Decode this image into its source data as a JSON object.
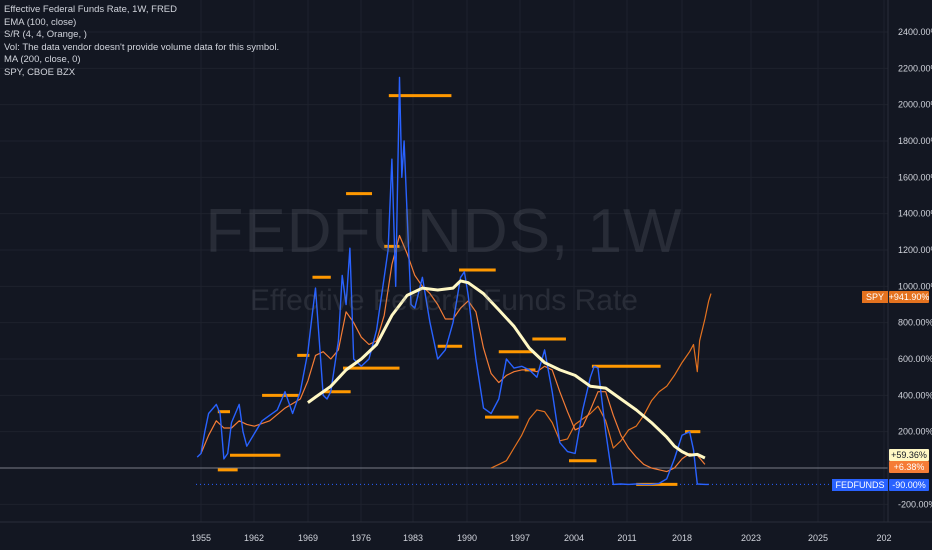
{
  "legend": {
    "title": "Effective Federal Funds Rate, 1W, FRED",
    "ema": "EMA (100, close)",
    "sr": "S/R (4, 4, Orange, )",
    "vol": "Vol: The data vendor doesn't provide volume data for this symbol.",
    "ma": "MA (200, close, 0)",
    "compare": "SPY, CBOE BZX"
  },
  "watermark": {
    "symbol": "FEDFUNDS, 1W",
    "description": "Effective Federal Funds Rate"
  },
  "colors": {
    "background": "#131722",
    "fedfunds": "#2962ff",
    "ema": "#f57c36",
    "ma": "#fff8c4",
    "sr": "#ff9800",
    "spy": "#e4721f",
    "baseline": "#787b86"
  },
  "chart_data": {
    "type": "line",
    "x_ticks": [
      "1955",
      "1962",
      "1969",
      "1976",
      "1983",
      "1990",
      "1997",
      "2004",
      "2011",
      "2018",
      "2023",
      "2025",
      "202"
    ],
    "y_ticks": [
      "2400.00%",
      "2200.00%",
      "2000.00%",
      "1800.00%",
      "1600.00%",
      "1400.00%",
      "1200.00%",
      "1000.00%",
      "800.00%",
      "600.00%",
      "400.00%",
      "200.00%",
      "-200.00%"
    ],
    "ylim": [
      -300,
      2550
    ],
    "y_unit": "%",
    "scale": "percent",
    "series": [
      {
        "name": "FEDFUNDS",
        "role": "main",
        "points": [
          [
            1954.5,
            60
          ],
          [
            1955,
            80
          ],
          [
            1955.5,
            200
          ],
          [
            1956,
            300
          ],
          [
            1957,
            350
          ],
          [
            1957.5,
            300
          ],
          [
            1958,
            50
          ],
          [
            1958.5,
            80
          ],
          [
            1959,
            250
          ],
          [
            1960,
            350
          ],
          [
            1960.5,
            200
          ],
          [
            1961,
            120
          ],
          [
            1962,
            190
          ],
          [
            1963,
            260
          ],
          [
            1964,
            290
          ],
          [
            1965,
            320
          ],
          [
            1966,
            420
          ],
          [
            1967,
            300
          ],
          [
            1968,
            420
          ],
          [
            1969,
            640
          ],
          [
            1969.5,
            820
          ],
          [
            1970,
            990
          ],
          [
            1970.5,
            700
          ],
          [
            1971,
            400
          ],
          [
            1971.5,
            380
          ],
          [
            1972,
            420
          ],
          [
            1973,
            700
          ],
          [
            1973.5,
            1060
          ],
          [
            1974,
            900
          ],
          [
            1974.5,
            1210
          ],
          [
            1975,
            600
          ],
          [
            1976,
            560
          ],
          [
            1977,
            600
          ],
          [
            1978,
            760
          ],
          [
            1979,
            1050
          ],
          [
            1979.5,
            1200
          ],
          [
            1980,
            1700
          ],
          [
            1980.5,
            1000
          ],
          [
            1981,
            2150
          ],
          [
            1981.3,
            1600
          ],
          [
            1981.6,
            1800
          ],
          [
            1982,
            1400
          ],
          [
            1982.5,
            900
          ],
          [
            1983,
            880
          ],
          [
            1984,
            1050
          ],
          [
            1985,
            800
          ],
          [
            1986,
            600
          ],
          [
            1987,
            650
          ],
          [
            1988,
            800
          ],
          [
            1989,
            1050
          ],
          [
            1989.5,
            1080
          ],
          [
            1990,
            950
          ],
          [
            1991,
            600
          ],
          [
            1992,
            330
          ],
          [
            1993,
            300
          ],
          [
            1994,
            380
          ],
          [
            1995,
            600
          ],
          [
            1996,
            550
          ],
          [
            1997,
            560
          ],
          [
            1998,
            540
          ],
          [
            1999,
            500
          ],
          [
            2000,
            650
          ],
          [
            2001,
            420
          ],
          [
            2002,
            140
          ],
          [
            2003,
            90
          ],
          [
            2004,
            80
          ],
          [
            2005,
            320
          ],
          [
            2006,
            500
          ],
          [
            2006.5,
            560
          ],
          [
            2007,
            550
          ],
          [
            2008,
            200
          ],
          [
            2009,
            -90
          ],
          [
            2010,
            -88
          ],
          [
            2011,
            -90
          ],
          [
            2012,
            -88
          ],
          [
            2013,
            -90
          ],
          [
            2014,
            -90
          ],
          [
            2015,
            -85
          ],
          [
            2016,
            -60
          ],
          [
            2017,
            50
          ],
          [
            2018,
            180
          ],
          [
            2019,
            200
          ],
          [
            2019.5,
            100
          ],
          [
            2020,
            -88
          ],
          [
            2021,
            -90
          ],
          [
            2021.5,
            -90
          ]
        ]
      },
      {
        "name": "EMA (100, close)",
        "role": "ema",
        "points": [
          [
            1955,
            80
          ],
          [
            1956,
            180
          ],
          [
            1957,
            260
          ],
          [
            1958,
            220
          ],
          [
            1959,
            220
          ],
          [
            1960,
            260
          ],
          [
            1961,
            240
          ],
          [
            1962,
            230
          ],
          [
            1964,
            260
          ],
          [
            1966,
            330
          ],
          [
            1968,
            380
          ],
          [
            1969,
            480
          ],
          [
            1970,
            620
          ],
          [
            1971,
            640
          ],
          [
            1972,
            600
          ],
          [
            1973,
            650
          ],
          [
            1974,
            860
          ],
          [
            1975,
            800
          ],
          [
            1976,
            720
          ],
          [
            1977,
            680
          ],
          [
            1978,
            700
          ],
          [
            1979,
            840
          ],
          [
            1980,
            1120
          ],
          [
            1981,
            1280
          ],
          [
            1982,
            1180
          ],
          [
            1983,
            1060
          ],
          [
            1984,
            1000
          ],
          [
            1985,
            960
          ],
          [
            1986,
            900
          ],
          [
            1987,
            820
          ],
          [
            1988,
            820
          ],
          [
            1989,
            880
          ],
          [
            1990,
            920
          ],
          [
            1991,
            860
          ],
          [
            1992,
            660
          ],
          [
            1993,
            520
          ],
          [
            1994,
            470
          ],
          [
            1995,
            510
          ],
          [
            1996,
            530
          ],
          [
            1997,
            540
          ],
          [
            1998,
            540
          ],
          [
            1999,
            530
          ],
          [
            2000,
            560
          ],
          [
            2001,
            540
          ],
          [
            2002,
            420
          ],
          [
            2003,
            310
          ],
          [
            2004,
            210
          ],
          [
            2005,
            230
          ],
          [
            2006,
            320
          ],
          [
            2007,
            420
          ],
          [
            2008,
            420
          ],
          [
            2009,
            290
          ],
          [
            2010,
            180
          ],
          [
            2011,
            110
          ],
          [
            2012,
            60
          ],
          [
            2013,
            20
          ],
          [
            2014,
            0
          ],
          [
            2015,
            -10
          ],
          [
            2016,
            -20
          ],
          [
            2017,
            0
          ],
          [
            2018,
            50
          ],
          [
            2019,
            80
          ],
          [
            2020,
            70
          ],
          [
            2021,
            20
          ]
        ]
      },
      {
        "name": "MA (200, close, 0)",
        "role": "ma",
        "points": [
          [
            1969,
            360
          ],
          [
            1970,
            390
          ],
          [
            1972,
            450
          ],
          [
            1974,
            540
          ],
          [
            1976,
            600
          ],
          [
            1978,
            680
          ],
          [
            1980,
            840
          ],
          [
            1982,
            950
          ],
          [
            1984,
            990
          ],
          [
            1986,
            980
          ],
          [
            1988,
            990
          ],
          [
            1989,
            1030
          ],
          [
            1990,
            1020
          ],
          [
            1992,
            960
          ],
          [
            1994,
            870
          ],
          [
            1996,
            780
          ],
          [
            1998,
            660
          ],
          [
            2000,
            580
          ],
          [
            2002,
            540
          ],
          [
            2004,
            510
          ],
          [
            2006,
            450
          ],
          [
            2008,
            440
          ],
          [
            2010,
            380
          ],
          [
            2012,
            320
          ],
          [
            2014,
            250
          ],
          [
            2016,
            170
          ],
          [
            2017,
            120
          ],
          [
            2018,
            90
          ],
          [
            2019,
            70
          ],
          [
            2020,
            75
          ],
          [
            2021,
            55
          ]
        ]
      },
      {
        "name": "SPY",
        "role": "compare",
        "points": [
          [
            1993,
            0
          ],
          [
            1994,
            20
          ],
          [
            1995,
            40
          ],
          [
            1996,
            110
          ],
          [
            1997,
            180
          ],
          [
            1998,
            270
          ],
          [
            1999,
            320
          ],
          [
            2000,
            310
          ],
          [
            2001,
            250
          ],
          [
            2002,
            150
          ],
          [
            2003,
            160
          ],
          [
            2004,
            240
          ],
          [
            2005,
            270
          ],
          [
            2006,
            300
          ],
          [
            2007,
            340
          ],
          [
            2008,
            260
          ],
          [
            2009,
            110
          ],
          [
            2010,
            150
          ],
          [
            2011,
            210
          ],
          [
            2012,
            230
          ],
          [
            2013,
            290
          ],
          [
            2014,
            370
          ],
          [
            2015,
            420
          ],
          [
            2016,
            450
          ],
          [
            2017,
            510
          ],
          [
            2018,
            580
          ],
          [
            2019,
            640
          ],
          [
            2019.5,
            680
          ],
          [
            2020,
            530
          ],
          [
            2020.3,
            700
          ],
          [
            2021,
            820
          ],
          [
            2021.5,
            920
          ],
          [
            2021.8,
            960
          ]
        ]
      }
    ],
    "sr_levels": [
      {
        "x0": 1979.6,
        "x1": 1987.8,
        "y": 2050
      },
      {
        "x0": 1974.0,
        "x1": 1977.4,
        "y": 1510
      },
      {
        "x0": 1969.6,
        "x1": 1972.0,
        "y": 1050
      },
      {
        "x0": 1979.0,
        "x1": 1981.0,
        "y": 1220
      },
      {
        "x0": 1988.8,
        "x1": 1993.6,
        "y": 1090
      },
      {
        "x0": 1986.0,
        "x1": 1989.2,
        "y": 670
      },
      {
        "x0": 1967.6,
        "x1": 1969.2,
        "y": 620
      },
      {
        "x0": 1963.0,
        "x1": 1967.8,
        "y": 400
      },
      {
        "x0": 1957.2,
        "x1": 1958.8,
        "y": 310
      },
      {
        "x0": 1958.8,
        "x1": 1965.4,
        "y": 70
      },
      {
        "x0": 1957.2,
        "x1": 1959.8,
        "y": -10
      },
      {
        "x0": 1971.0,
        "x1": 1974.6,
        "y": 420
      },
      {
        "x0": 1973.6,
        "x1": 1981.0,
        "y": 550
      },
      {
        "x0": 1992.2,
        "x1": 1996.6,
        "y": 280
      },
      {
        "x0": 1994.0,
        "x1": 1998.4,
        "y": 640
      },
      {
        "x0": 1998.4,
        "x1": 2002.8,
        "y": 710
      },
      {
        "x0": 1997.4,
        "x1": 1998.8,
        "y": 540
      },
      {
        "x0": 2003.2,
        "x1": 2006.8,
        "y": 40
      },
      {
        "x0": 2006.2,
        "x1": 2015.2,
        "y": 560
      },
      {
        "x0": 2012.0,
        "x1": 2017.4,
        "y": -90
      },
      {
        "x0": 2018.4,
        "x1": 2020.4,
        "y": 200
      }
    ],
    "baseline_value": 0,
    "badges": [
      {
        "text": "SPY",
        "value": "+941.90%",
        "y": 941.9,
        "color": "#e4721f"
      },
      {
        "text": "",
        "value": "+59.36%",
        "y": 59.36,
        "color": "#fff8c4"
      },
      {
        "text": "",
        "value": "+6.38%",
        "y": 6.38,
        "color": "#f57c36"
      },
      {
        "text": "FEDFUNDS",
        "value": "-90.00%",
        "y": -90,
        "color": "#2962ff"
      }
    ]
  }
}
